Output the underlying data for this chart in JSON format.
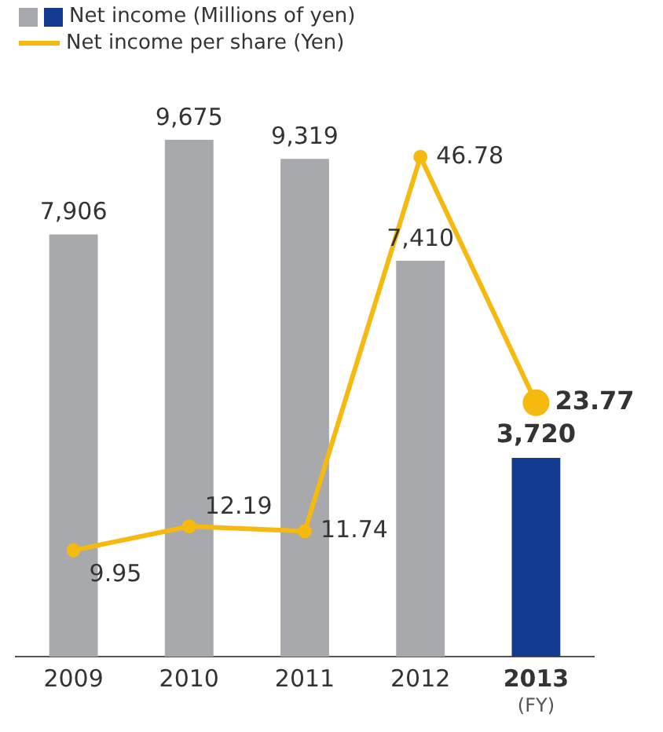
{
  "chart_data": {
    "type": "bar",
    "xlabel": "(FY)",
    "categories": [
      "2009",
      "2010",
      "2011",
      "2012",
      "2013"
    ],
    "series": [
      {
        "name": "Net income (Millions of yen)",
        "color": "#a7a9ac",
        "colors": [
          "#a7a9ac",
          "#a7a9ac",
          "#a7a9ac",
          "#a7a9ac",
          "#123a8f"
        ],
        "values": [
          7906,
          9675,
          9319,
          7410,
          3720
        ],
        "value_labels": [
          "7,906",
          "9,675",
          "9,319",
          "7,410",
          "3,720"
        ]
      },
      {
        "name": "Net income per share (Yen)",
        "type": "line",
        "axis": "y2",
        "color": "#f5b90f",
        "values": [
          9.95,
          12.19,
          11.74,
          46.78,
          23.77
        ],
        "value_labels": [
          "9.95",
          "12.19",
          "11.74",
          "46.78",
          "23.77"
        ]
      }
    ],
    "tick_labels": "x",
    "legend": "top left",
    "marker": "circle"
  }
}
